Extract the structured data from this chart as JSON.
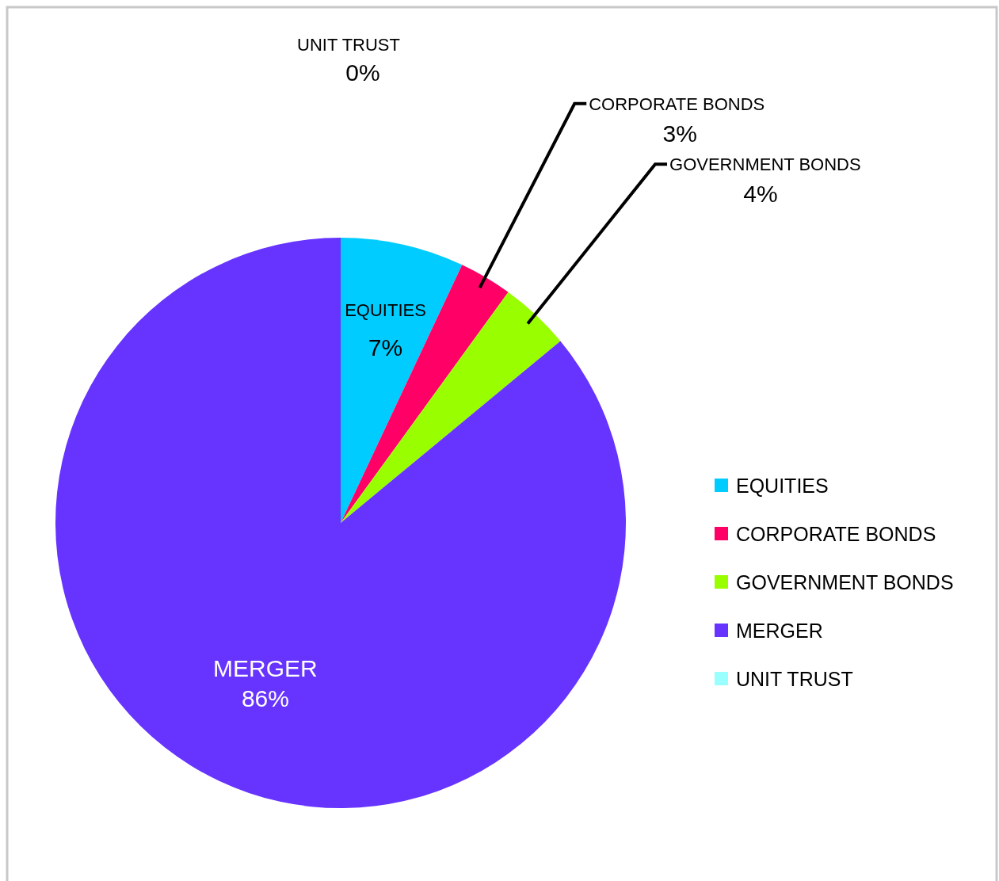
{
  "chart_data": {
    "type": "pie",
    "categories": [
      "EQUITIES",
      "CORPORATE BONDS",
      "GOVERNMENT BONDS",
      "MERGER",
      "UNIT TRUST"
    ],
    "values": [
      7,
      3,
      4,
      86,
      0
    ],
    "value_labels": [
      "7%",
      "3%",
      "4%",
      "86%",
      "0%"
    ],
    "colors": [
      "#00ccff",
      "#ff0066",
      "#99ff00",
      "#6633ff",
      "#99ffff"
    ],
    "legend": "right"
  }
}
